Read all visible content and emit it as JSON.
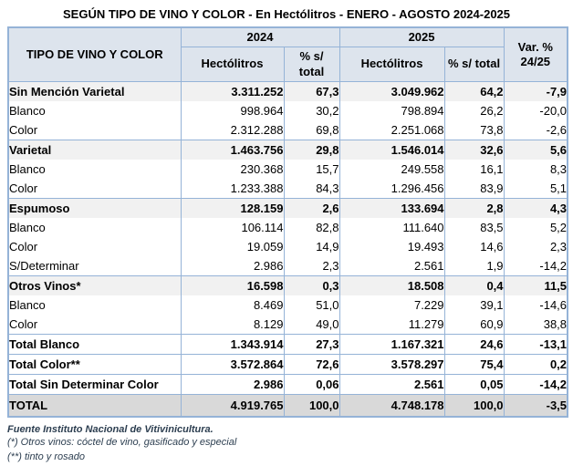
{
  "title": "SEGÚN TIPO DE VINO Y COLOR - En Hectólitros - ENERO - AGOSTO 2024-2025",
  "colors": {
    "border_blue": "#95b3d7",
    "header_bg": "#dde4ed",
    "section_row_bg": "#f1f1f1",
    "grand_total_bg": "#d9d9d9",
    "footer_text": "#2c3e50"
  },
  "table": {
    "corner_header": "TIPO DE VINO Y COLOR",
    "year_groups": [
      "2024",
      "2025"
    ],
    "sub_headers": [
      "Hectólitros",
      "% s/ total",
      "Hectólitros",
      "% s/ total"
    ],
    "var_header": {
      "line1": "Var. %",
      "line2": "24/25"
    },
    "rows": [
      {
        "kind": "section",
        "label": "Sin Mención Varietal",
        "h24": "3.311.252",
        "p24": "67,3",
        "h25": "3.049.962",
        "p25": "64,2",
        "var": "-7,9"
      },
      {
        "kind": "sub",
        "label": "Blanco",
        "h24": "998.964",
        "p24": "30,2",
        "h25": "798.894",
        "p25": "26,2",
        "var": "-20,0"
      },
      {
        "kind": "sub",
        "label": "Color",
        "h24": "2.312.288",
        "p24": "69,8",
        "h25": "2.251.068",
        "p25": "73,8",
        "var": "-2,6"
      },
      {
        "kind": "section",
        "label": "Varietal",
        "h24": "1.463.756",
        "p24": "29,8",
        "h25": "1.546.014",
        "p25": "32,6",
        "var": "5,6"
      },
      {
        "kind": "sub",
        "label": "Blanco",
        "h24": "230.368",
        "p24": "15,7",
        "h25": "249.558",
        "p25": "16,1",
        "var": "8,3"
      },
      {
        "kind": "sub",
        "label": "Color",
        "h24": "1.233.388",
        "p24": "84,3",
        "h25": "1.296.456",
        "p25": "83,9",
        "var": "5,1"
      },
      {
        "kind": "section",
        "label": "Espumoso",
        "h24": "128.159",
        "p24": "2,6",
        "h25": "133.694",
        "p25": "2,8",
        "var": "4,3"
      },
      {
        "kind": "sub",
        "label": "Blanco",
        "h24": "106.114",
        "p24": "82,8",
        "h25": "111.640",
        "p25": "83,5",
        "var": "5,2"
      },
      {
        "kind": "sub",
        "label": "Color",
        "h24": "19.059",
        "p24": "14,9",
        "h25": "19.493",
        "p25": "14,6",
        "var": "2,3"
      },
      {
        "kind": "sub",
        "label": "S/Determinar",
        "h24": "2.986",
        "p24": "2,3",
        "h25": "2.561",
        "p25": "1,9",
        "var": "-14,2"
      },
      {
        "kind": "section",
        "label": "Otros Vinos*",
        "h24": "16.598",
        "p24": "0,3",
        "h25": "18.508",
        "p25": "0,4",
        "var": "11,5"
      },
      {
        "kind": "sub",
        "label": "Blanco",
        "h24": "8.469",
        "p24": "51,0",
        "h25": "7.229",
        "p25": "39,1",
        "var": "-14,6"
      },
      {
        "kind": "sub",
        "label": "Color",
        "h24": "8.129",
        "p24": "49,0",
        "h25": "11.279",
        "p25": "60,9",
        "var": "38,8"
      },
      {
        "kind": "total",
        "label": "Total Blanco",
        "h24": "1.343.914",
        "p24": "27,3",
        "h25": "1.167.321",
        "p25": "24,6",
        "var": "-13,1"
      },
      {
        "kind": "total",
        "label": "Total Color**",
        "h24": "3.572.864",
        "p24": "72,6",
        "h25": "3.578.297",
        "p25": "75,4",
        "var": "0,2"
      },
      {
        "kind": "total",
        "label": "Total Sin Determinar Color",
        "h24": "2.986",
        "p24": "0,06",
        "h25": "2.561",
        "p25": "0,05",
        "var": "-14,2"
      },
      {
        "kind": "grand",
        "label": "TOTAL",
        "h24": "4.919.765",
        "p24": "100,0",
        "h25": "4.748.178",
        "p25": "100,0",
        "var": "-3,5"
      }
    ]
  },
  "footer": {
    "fuente": "Fuente Instituto Nacional de Vitivinicultura.",
    "note1": "(*) Otros vinos: cóctel de vino, gasificado y especial",
    "note2": "(**) tinto y rosado"
  }
}
